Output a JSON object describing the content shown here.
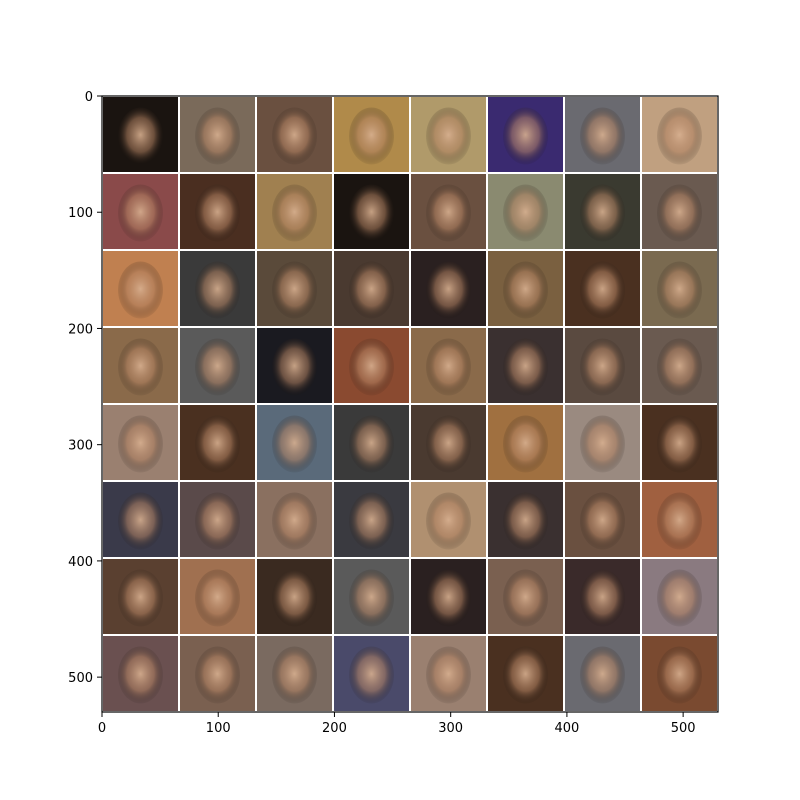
{
  "figure": {
    "description_type": "image grid",
    "grid": {
      "rows": 8,
      "cols": 8
    },
    "x_axis": {
      "ticks": [
        0,
        100,
        200,
        300,
        400,
        500
      ],
      "tick_labels": [
        "0",
        "100",
        "200",
        "300",
        "400",
        "500"
      ],
      "range": [
        0,
        530
      ]
    },
    "y_axis": {
      "ticks": [
        0,
        100,
        200,
        300,
        400,
        500
      ],
      "tick_labels": [
        "0",
        "100",
        "200",
        "300",
        "400",
        "500"
      ],
      "range": [
        0,
        530
      ],
      "inverted": true
    },
    "tile_border_color": "#ffffff",
    "frame_color": "#000000",
    "tiles": [
      [
        "#1a1410",
        "#7a6a5a",
        "#6a5040",
        "#b08a4a",
        "#b09a6a",
        "#3a2a70",
        "#6a6a70",
        "#c0a080"
      ],
      [
        "#8a4a4a",
        "#4a2e20",
        "#a08050",
        "#1a1410",
        "#6a5040",
        "#8a8a70",
        "#3a3a30",
        "#6a5a50"
      ],
      [
        "#c08050",
        "#3a3a3a",
        "#5a4a3a",
        "#4a3a30",
        "#2a2020",
        "#7a6040",
        "#4a3020",
        "#7a6a50"
      ],
      [
        "#8a6a4a",
        "#5a5a5a",
        "#1a1a20",
        "#8a4a30",
        "#8a6a4a",
        "#3a3030",
        "#5a4a40",
        "#6a5a50"
      ],
      [
        "#9a8070",
        "#4a3020",
        "#5a6a7a",
        "#3a3a3a",
        "#4a3a30",
        "#a07040",
        "#9a8a80",
        "#4a3020"
      ],
      [
        "#3a3a4a",
        "#5a4a4a",
        "#8a7060",
        "#3a3a40",
        "#b09070",
        "#3a3030",
        "#6a5040",
        "#a06040"
      ],
      [
        "#5a4030",
        "#a07050",
        "#3a2a20",
        "#5a5a5a",
        "#2a2020",
        "#7a6050",
        "#3a2a2a",
        "#8a7a80"
      ],
      [
        "#6a5050",
        "#7a6050",
        "#7a6a60",
        "#4a4a6a",
        "#9a8070",
        "#4a3020",
        "#6a6a70",
        "#7a4a30"
      ]
    ]
  }
}
